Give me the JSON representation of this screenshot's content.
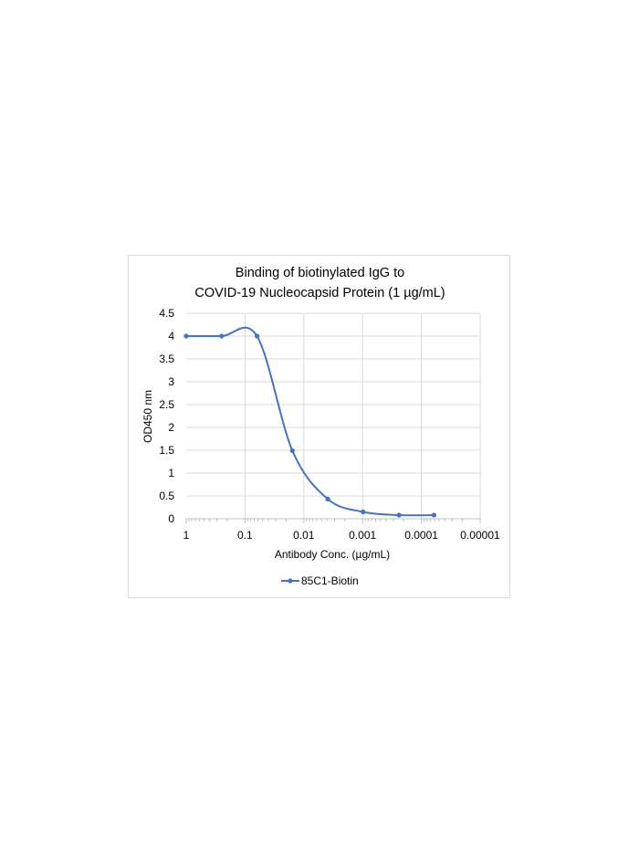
{
  "chart_data": {
    "type": "scatter",
    "title": [
      "Binding of biotinylated IgG to",
      "COVID-19 Nucleocapsid Protein (1 µg/mL)"
    ],
    "xlabel": "Antibody Conc. (µg/mL)",
    "ylabel": "OD450 nm",
    "x_scale": "log",
    "x_reversed": true,
    "xlim": [
      1,
      1e-05
    ],
    "ylim": [
      0,
      4.5
    ],
    "x_ticks": [
      1,
      0.1,
      0.01,
      0.001,
      0.0001,
      1e-05
    ],
    "x_tick_labels": [
      "1",
      "0.1",
      "0.01",
      "0.001",
      "0.0001",
      "0.00001"
    ],
    "y_ticks": [
      0,
      0.5,
      1,
      1.5,
      2,
      2.5,
      3,
      3.5,
      4,
      4.5
    ],
    "y_tick_labels": [
      "0",
      "0.5",
      "1",
      "1.5",
      "2",
      "2.5",
      "3",
      "3.5",
      "4",
      "4.5"
    ],
    "grid": true,
    "smooth_line": true,
    "legend_position": "bottom",
    "series": [
      {
        "name": "85C1-Biotin",
        "color": "#4472c4",
        "points": [
          {
            "x": 1,
            "y": 4.0
          },
          {
            "x": 0.25,
            "y": 4.0
          },
          {
            "x": 0.0625,
            "y": 4.0
          },
          {
            "x": 0.015625,
            "y": 1.49
          },
          {
            "x": 0.0039,
            "y": 0.43
          },
          {
            "x": 0.00098,
            "y": 0.15
          },
          {
            "x": 0.00024,
            "y": 0.08
          },
          {
            "x": 6.1e-05,
            "y": 0.08
          }
        ]
      }
    ]
  }
}
